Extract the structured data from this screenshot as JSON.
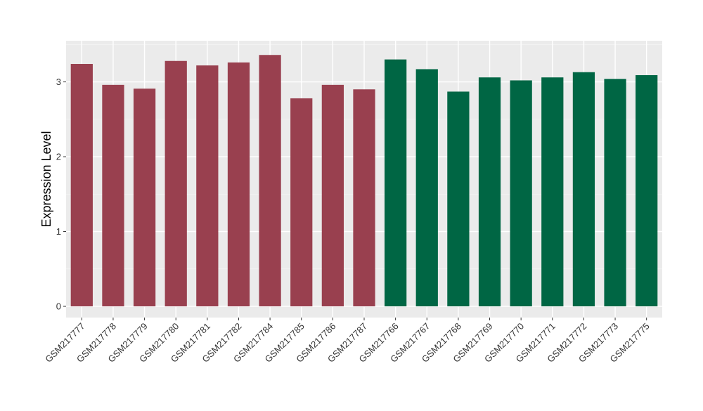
{
  "chart_data": {
    "type": "bar",
    "title": "",
    "xlabel": "",
    "ylabel": "Expression Level",
    "ylim": [
      -0.15,
      3.55
    ],
    "yticks": [
      0,
      1,
      2,
      3
    ],
    "grid": true,
    "categories": [
      "GSM217777",
      "GSM217778",
      "GSM217779",
      "GSM217780",
      "GSM217781",
      "GSM217782",
      "GSM217784",
      "GSM217785",
      "GSM217786",
      "GSM217787",
      "GSM217766",
      "GSM217767",
      "GSM217768",
      "GSM217769",
      "GSM217770",
      "GSM217771",
      "GSM217772",
      "GSM217773",
      "GSM217775"
    ],
    "values": [
      3.24,
      2.96,
      2.91,
      3.28,
      3.22,
      3.26,
      3.36,
      2.78,
      2.96,
      2.9,
      3.3,
      3.17,
      2.87,
      3.06,
      3.02,
      3.06,
      3.13,
      3.04,
      3.09
    ],
    "groups": [
      0,
      0,
      0,
      0,
      0,
      0,
      0,
      0,
      0,
      0,
      1,
      1,
      1,
      1,
      1,
      1,
      1,
      1,
      1
    ],
    "group_colors": [
      "#99404f",
      "#006644"
    ],
    "panel_color": "#ebebeb"
  }
}
